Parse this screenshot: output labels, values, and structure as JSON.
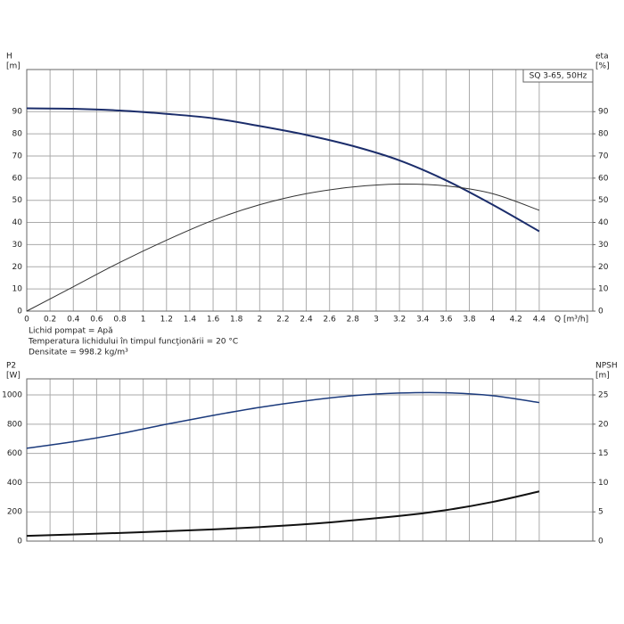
{
  "chart_data": [
    {
      "type": "line",
      "label": "SQ 3-65, 50Hz",
      "ylabel": [
        "H",
        "[m]"
      ],
      "y2label": [
        "eta",
        "[%]"
      ],
      "xlabel": "Q [m³/h]",
      "notes": [
        "Lichid pompat = Apă",
        "Temperatura lichidului în timpul funcţionării = 20 °C",
        "Densitate = 998.2 kg/m³"
      ],
      "xlim": [
        0,
        4.86
      ],
      "xticks": [
        0,
        0.2,
        0.4,
        0.6,
        0.8,
        1,
        1.2,
        1.4,
        1.6,
        1.8,
        2,
        2.2,
        2.4,
        2.6,
        2.8,
        3,
        3.2,
        3.4,
        3.6,
        3.8,
        4,
        4.2,
        4.4
      ],
      "ylim": [
        0,
        109
      ],
      "yticks": [
        0,
        10,
        20,
        30,
        40,
        50,
        60,
        70,
        80,
        90
      ],
      "y2lim": [
        0,
        109
      ],
      "y2ticks": [
        0,
        10,
        20,
        30,
        40,
        50,
        60,
        70,
        80,
        90
      ],
      "grid": true,
      "series": [
        {
          "color": "#1b2d6b",
          "width": 2,
          "x": [
            0,
            0.4,
            0.8,
            1.2,
            1.6,
            2.0,
            2.4,
            2.8,
            3.2,
            3.6,
            4.0,
            4.4
          ],
          "values": [
            91.5,
            91.3,
            90.5,
            89,
            87,
            83.5,
            79.5,
            74.5,
            68,
            59,
            48,
            36
          ]
        },
        {
          "color": "#333333",
          "width": 1,
          "axis": "y2",
          "x": [
            0,
            0.4,
            0.8,
            1.2,
            1.6,
            2.0,
            2.4,
            2.8,
            3.2,
            3.6,
            4.0,
            4.4
          ],
          "values": [
            0,
            11,
            22,
            32,
            41,
            48,
            53,
            56,
            57.3,
            56.5,
            53,
            45.5
          ]
        }
      ]
    },
    {
      "type": "line",
      "ylabel": [
        "P2",
        "[W]"
      ],
      "y2label": [
        "NPSH",
        "[m]"
      ],
      "xlim": [
        0,
        4.86
      ],
      "ylim": [
        0,
        1110
      ],
      "yticks": [
        0,
        200,
        400,
        600,
        800,
        1000
      ],
      "y2lim": [
        0,
        27.75
      ],
      "y2ticks": [
        0,
        5,
        10,
        15,
        20,
        25
      ],
      "grid": true,
      "series": [
        {
          "color": "#1b3a7c",
          "width": 1.5,
          "x": [
            0,
            0.4,
            0.8,
            1.2,
            1.6,
            2.0,
            2.4,
            2.8,
            3.2,
            3.6,
            4.0,
            4.4
          ],
          "values": [
            635,
            680,
            735,
            800,
            860,
            915,
            960,
            995,
            1013,
            1015,
            995,
            948
          ]
        },
        {
          "color": "#111111",
          "width": 2,
          "axis": "y2",
          "x": [
            0,
            0.8,
            1.6,
            2.4,
            3.2,
            3.6,
            4.0,
            4.4
          ],
          "values": [
            0.9,
            1.4,
            2.0,
            2.9,
            4.3,
            5.3,
            6.7,
            8.5
          ]
        }
      ]
    }
  ]
}
